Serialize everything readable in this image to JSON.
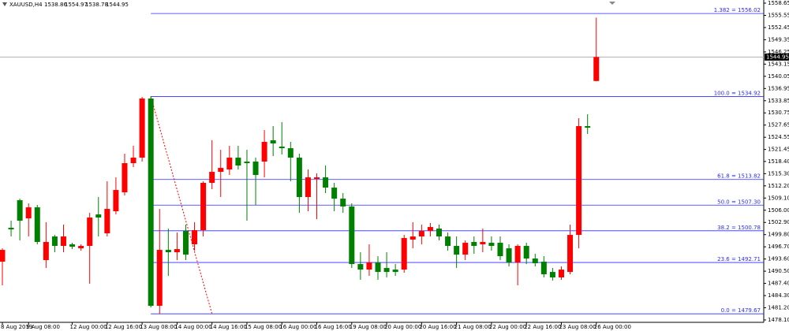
{
  "chart_data": {
    "type": "candlestick",
    "symbol": "XAUUSD,H4",
    "up_color": "#ff0000",
    "down_color": "#008000",
    "categories": [
      "8 Aug 2019",
      null,
      null,
      "9 Aug 08:00",
      null,
      null,
      null,
      null,
      "12 Aug 00:00",
      null,
      null,
      null,
      "12 Aug 16:00",
      null,
      null,
      null,
      "13 Aug 08:00",
      null,
      null,
      null,
      "14 Aug 00:00",
      null,
      null,
      null,
      "14 Aug 16:00",
      null,
      null,
      null,
      "15 Aug 08:00",
      null,
      null,
      null,
      "16 Aug 00:00",
      null,
      null,
      null,
      "16 Aug 16:00",
      null,
      null,
      null,
      "19 Aug 08:00",
      null,
      null,
      null,
      "20 Aug 00:00",
      null,
      null,
      null,
      "20 Aug 16:00",
      null,
      null,
      null,
      "21 Aug 08:00",
      null,
      null,
      null,
      "22 Aug 00:00",
      null,
      null,
      null,
      "22 Aug 16:00",
      null,
      null,
      null,
      "23 Aug 08:00",
      null,
      null,
      null,
      "26 Aug 00:00"
    ],
    "open": [
      1492.92,
      1501.53,
      1508.55,
      1503.94,
      1506.74,
      1493.32,
      1499.33,
      1496.93,
      1497.33,
      1496.32,
      1496.93,
      1504.94,
      1500.13,
      1505.74,
      1510.55,
      1517.97,
      1519.37,
      1534.4,
      1481.69,
      1495.92,
      1495.32,
      1500.73,
      1497.33,
      1500.93,
      1512.96,
      1515.76,
      1516.36,
      1519.37,
      1518.37,
      1518.37,
      1518.37,
      1523.78,
      1522.18,
      1521.77,
      1519.37,
      1509.35,
      1513.96,
      1514.36,
      1511.75,
      1508.95,
      1506.95,
      1492.32,
      1490.91,
      1492.72,
      1491.31,
      1490.91,
      1490.91,
      1498.53,
      1499.33,
      1500.73,
      1501.33,
      1499.33,
      1496.93,
      1494.72,
      1497.93,
      1497.33,
      1497.73,
      1497.73,
      1496.32,
      1492.72,
      1496.93,
      1493.72,
      1492.92,
      1490.31,
      1488.91,
      1490.31,
      1499.73,
      1527.39,
      1538.86
    ],
    "high": [
      1496.32,
      1503.34,
      1508.95,
      1507.75,
      1507.35,
      1502.94,
      1499.73,
      1502.34,
      1497.73,
      1497.33,
      1505.34,
      1509.35,
      1513.36,
      1514.36,
      1520.37,
      1522.38,
      1534.8,
      1534.92,
      1506.34,
      1501.33,
      1500.33,
      1502.34,
      1502.94,
      1513.36,
      1523.78,
      1521.37,
      1522.38,
      1522.38,
      1521.37,
      1519.37,
      1526.38,
      1527.39,
      1528.39,
      1523.38,
      1520.37,
      1516.36,
      1515.36,
      1517.37,
      1512.96,
      1510.35,
      1507.75,
      1495.32,
      1497.33,
      1494.32,
      1495.32,
      1492.32,
      1499.73,
      1502.94,
      1502.34,
      1502.74,
      1502.34,
      1500.33,
      1499.33,
      1498.33,
      1499.33,
      1501.33,
      1499.33,
      1499.33,
      1497.33,
      1497.33,
      1497.73,
      1494.92,
      1494.32,
      1491.31,
      1491.71,
      1502.34,
      1529.39,
      1530.39,
      1554.97
    ],
    "low": [
      1486.91,
      1499.33,
      1498.33,
      1499.33,
      1497.33,
      1491.31,
      1495.32,
      1495.32,
      1496.12,
      1495.72,
      1487.31,
      1499.33,
      1499.33,
      1504.94,
      1509.75,
      1516.97,
      1518.37,
      1481.29,
      1479.67,
      1489.31,
      1493.32,
      1493.32,
      1495.72,
      1499.33,
      1511.35,
      1509.35,
      1514.96,
      1516.36,
      1503.34,
      1507.35,
      1514.36,
      1519.77,
      1520.17,
      1513.36,
      1505.34,
      1505.74,
      1503.74,
      1510.35,
      1505.74,
      1505.34,
      1491.31,
      1488.31,
      1489.31,
      1488.31,
      1488.91,
      1489.31,
      1490.11,
      1496.32,
      1497.33,
      1499.33,
      1498.33,
      1495.72,
      1491.31,
      1493.32,
      1494.92,
      1495.32,
      1495.72,
      1493.32,
      1491.71,
      1486.91,
      1492.32,
      1491.71,
      1488.91,
      1488.11,
      1488.31,
      1489.71,
      1496.32,
      1525.38,
      1538.78
    ],
    "close": [
      1495.92,
      1501.13,
      1503.34,
      1506.74,
      1497.93,
      1497.93,
      1496.93,
      1499.33,
      1496.72,
      1496.93,
      1504.14,
      1504.14,
      1506.34,
      1511.15,
      1517.97,
      1519.37,
      1534.4,
      1481.69,
      1495.92,
      1495.32,
      1496.12,
      1494.72,
      1500.93,
      1512.96,
      1515.76,
      1516.76,
      1519.37,
      1517.37,
      1517.97,
      1514.96,
      1523.38,
      1522.98,
      1521.77,
      1519.37,
      1509.35,
      1514.36,
      1514.36,
      1511.75,
      1508.95,
      1506.95,
      1492.32,
      1490.91,
      1492.72,
      1490.31,
      1490.31,
      1490.31,
      1498.93,
      1499.33,
      1500.73,
      1501.73,
      1499.33,
      1496.93,
      1494.72,
      1497.73,
      1496.93,
      1497.93,
      1496.93,
      1494.32,
      1492.72,
      1496.93,
      1493.72,
      1492.52,
      1489.71,
      1488.91,
      1490.91,
      1499.73,
      1527.39,
      1526.99,
      1544.95
    ],
    "fib_color": "#2b2bff",
    "fib_levels": [
      {
        "value": 1556.02,
        "label": "1.382 = 1556.02"
      },
      {
        "value": 1534.92,
        "label": "100.0 = 1534.92"
      },
      {
        "value": 1513.82,
        "label": "61.8 = 1513.82"
      },
      {
        "value": 1507.3,
        "label": "50.0 = 1507.30"
      },
      {
        "value": 1500.78,
        "label": "38.2 = 1500.78"
      },
      {
        "value": 1492.71,
        "label": "23.6 = 1492.71"
      },
      {
        "value": 1479.67,
        "label": "0.0 = 1479.67"
      }
    ],
    "ylim": [
      1478.1,
      1558.65
    ],
    "yticks": [
      1558.65,
      1555.55,
      1552.45,
      1549.35,
      1546.25,
      1543.15,
      1540.05,
      1536.95,
      1533.85,
      1530.75,
      1527.65,
      1524.55,
      1521.45,
      {
        "value": 1518.4,
        "label": "1518.40"
      },
      {
        "value": 1515.3,
        "label": "1515.30"
      },
      {
        "value": 1512.2,
        "label": "1512.20"
      },
      {
        "value": 1509.1,
        "label": "1509.10"
      },
      {
        "value": 1506,
        "label": "1506.00"
      },
      {
        "value": 1502.9,
        "label": "1502.90"
      },
      {
        "value": 1499.8,
        "label": "1499.80"
      },
      {
        "value": 1496.7,
        "label": "1496.70"
      },
      {
        "value": 1493.6,
        "label": "1493.60"
      },
      {
        "value": 1490.5,
        "label": "1490.50"
      },
      {
        "value": 1487.4,
        "label": "1487.40"
      },
      {
        "value": 1484.3,
        "label": "1484.30"
      },
      {
        "value": 1481.2,
        "label": "1481.20"
      },
      {
        "value": 1478.1,
        "label": "1478.10"
      }
    ]
  }
}
